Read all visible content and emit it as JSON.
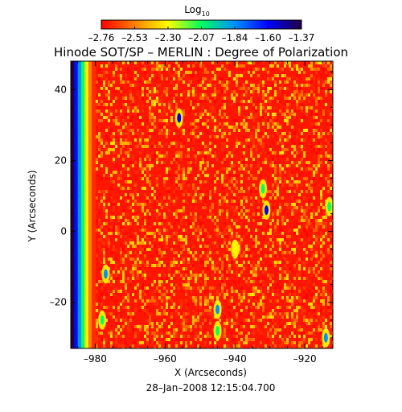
{
  "chart_data": {
    "type": "heatmap",
    "title": "Hinode SOT/SP – MERLIN : Degree of Polarization",
    "colorbar": {
      "label_main": "Log",
      "label_sub": "10",
      "ticks": [
        "–2.76",
        "–2.53",
        "–2.30",
        "–2.07",
        "–1.84",
        "–1.60",
        "–1.37"
      ],
      "range": [
        -2.76,
        -1.37
      ],
      "colors": [
        "#ff0000",
        "#ff8000",
        "#ffff00",
        "#00ff60",
        "#0090ff",
        "#0000ff",
        "#200040"
      ]
    },
    "xlabel": "X (Arcseconds)",
    "ylabel": "Y (Arcseconds)",
    "xlim": [
      -987,
      -912
    ],
    "ylim": [
      -33,
      48
    ],
    "xticks": [
      {
        "value": -980,
        "label": "–980"
      },
      {
        "value": -960,
        "label": "–960"
      },
      {
        "value": -940,
        "label": "–940"
      },
      {
        "value": -920,
        "label": "–920"
      }
    ],
    "yticks": [
      {
        "value": 40,
        "label": "40"
      },
      {
        "value": 20,
        "label": "20"
      },
      {
        "value": 0,
        "label": "0"
      },
      {
        "value": -20,
        "label": "–20"
      }
    ],
    "background_value": -2.72,
    "limb_profile": [
      {
        "x": -987.0,
        "value": -1.37
      },
      {
        "x": -986.0,
        "value": -1.62
      },
      {
        "x": -985.0,
        "value": -1.84
      },
      {
        "x": -984.0,
        "value": -2.07
      },
      {
        "x": -983.0,
        "value": -2.3
      },
      {
        "x": -982.0,
        "value": -2.53
      },
      {
        "x": -981.0,
        "value": -2.68
      }
    ],
    "features": [
      {
        "x": -977,
        "y": -12,
        "value": -1.84
      },
      {
        "x": -978,
        "y": -25,
        "value": -2.07
      },
      {
        "x": -956,
        "y": 32,
        "value": -1.6
      },
      {
        "x": -931,
        "y": 6,
        "value": -1.6
      },
      {
        "x": -932,
        "y": 12,
        "value": -2.07
      },
      {
        "x": -945,
        "y": -22,
        "value": -1.84
      },
      {
        "x": -945,
        "y": -28,
        "value": -2.07
      },
      {
        "x": -914,
        "y": -30,
        "value": -1.84
      },
      {
        "x": -913,
        "y": 7,
        "value": -2.07
      },
      {
        "x": -940,
        "y": -5,
        "value": -2.3
      }
    ],
    "grid": false,
    "date": "28–Jan–2008 12:15:04.700"
  }
}
